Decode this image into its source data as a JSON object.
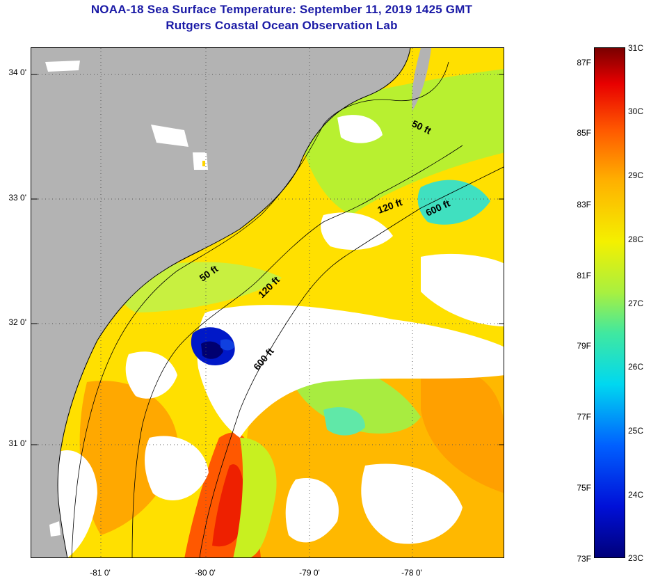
{
  "header": {
    "title_line1": "NOAA-18 Sea Surface Temperature:  September 11, 2019 1425 GMT",
    "title_line2": "Rutgers Coastal Ocean Observation Lab"
  },
  "axes": {
    "lat_labels": [
      "34 0'",
      "33 0'",
      "32 0'",
      "31 0'"
    ],
    "lon_labels": [
      "-81 0'",
      "-80 0'",
      "-79 0'",
      "-78 0'"
    ]
  },
  "isobaths": {
    "label_50ft_north": "50 ft",
    "label_120ft_north": "120 ft",
    "label_600ft_north": "600 ft",
    "label_50ft_mid": "50 ft",
    "label_120ft_mid": "120 ft",
    "label_600ft_south": "600 ft"
  },
  "colorbar": {
    "f_labels": [
      "87F",
      "85F",
      "83F",
      "81F",
      "79F",
      "77F",
      "75F",
      "73F"
    ],
    "c_labels": [
      "31C",
      "30C",
      "29C",
      "28C",
      "27C",
      "26C",
      "25C",
      "24C",
      "23C"
    ],
    "min_c": 23,
    "max_c": 31,
    "min_f": 73,
    "max_f": 87
  },
  "colors": {
    "title": "#1a1aa6",
    "land": "#b3b3b3",
    "warm_sst": "#ffb800",
    "hot_sst": "#ff5000",
    "cool_sst": "#a8f040",
    "cold_sst": "#00d8e8",
    "very_cold_sst": "#0010c8"
  }
}
